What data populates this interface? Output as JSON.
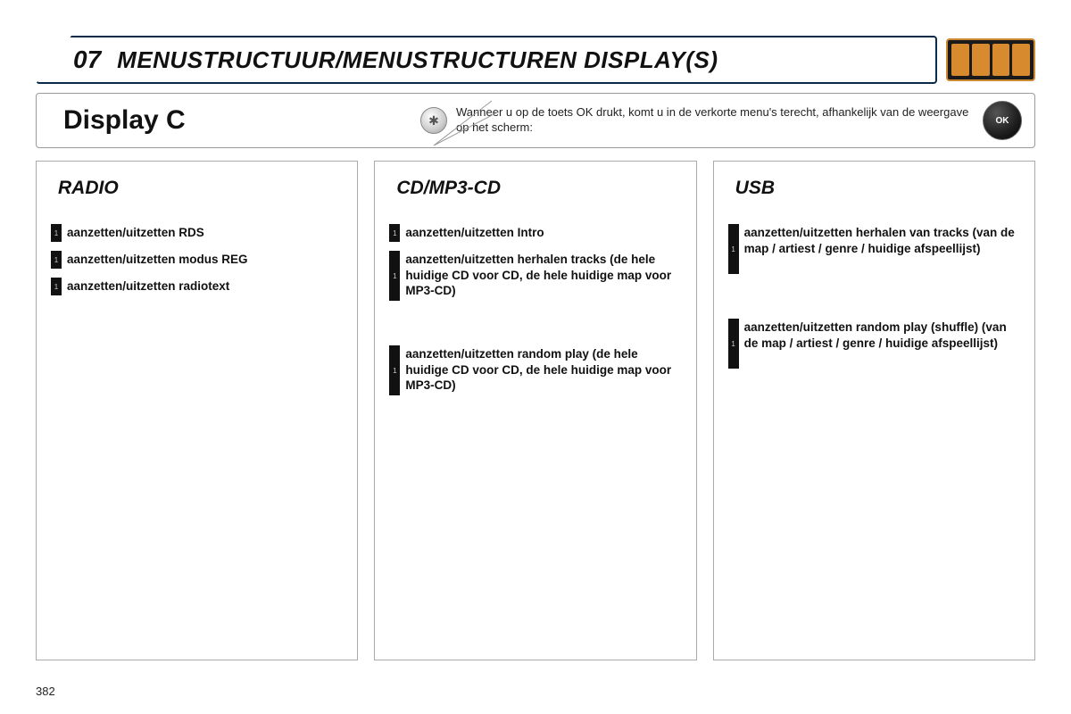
{
  "header": {
    "section_number": "07",
    "title": "MENUSTRUCTUUR/MENUSTRUCTUREN DISPLAY(S)"
  },
  "info": {
    "display_title": "Display C",
    "hint": "Wanneer u op de toets OK drukt, komt u in de verkorte menu's terecht, afhankelijk van de weergave op het scherm:",
    "ok_label": "OK"
  },
  "columns": [
    {
      "title": "RADIO",
      "items": [
        {
          "marker": "1",
          "text": "aanzetten/uitzetten RDS"
        },
        {
          "marker": "1",
          "text": "aanzetten/uitzetten modus REG"
        },
        {
          "marker": "1",
          "text": "aanzetten/uitzetten radiotext"
        }
      ]
    },
    {
      "title": "CD/MP3-CD",
      "items": [
        {
          "marker": "1",
          "text": "aanzetten/uitzetten Intro"
        },
        {
          "marker": "1",
          "text": "aanzetten/uitzetten herhalen tracks (de hele huidige CD voor CD, de hele huidige map voor MP3-CD)",
          "tall": true
        },
        {
          "marker": "1",
          "text": "aanzetten/uitzetten random play (de hele huidige CD voor CD, de hele huidige map voor MP3-CD)",
          "tall": true,
          "gap_before": true
        }
      ]
    },
    {
      "title": "USB",
      "items": [
        {
          "marker": "1",
          "text": "aanzetten/uitzetten herhalen van tracks (van de map / artiest / genre / huidige afspeellijst)",
          "tall": true
        },
        {
          "marker": "1",
          "text": "aanzetten/uitzetten random play (shuffle) (van de map / artiest / genre / huidige afspeellijst)",
          "tall": true,
          "gap_before": true
        }
      ]
    }
  ],
  "page_number": "382",
  "colors": {
    "border_dark": "#0a2a4a",
    "border_light": "#aaaaaa",
    "icon_bg": "#1a1a1a",
    "icon_accent": "#d78b2e",
    "marker_bg": "#111111"
  }
}
